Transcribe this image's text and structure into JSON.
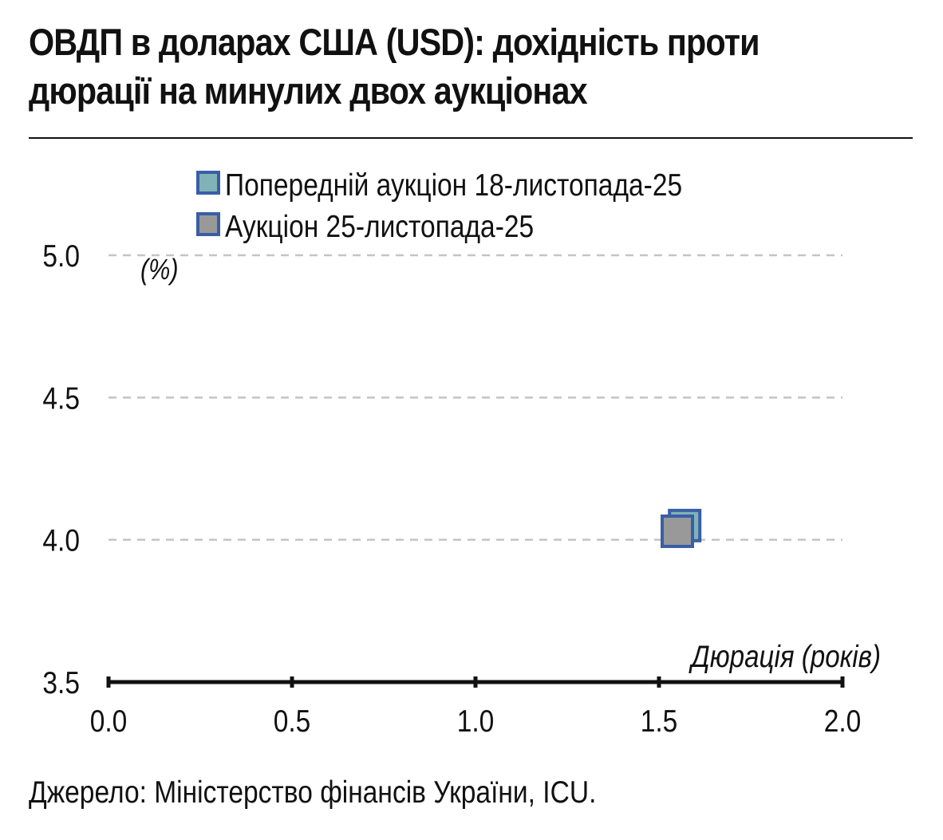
{
  "title": "ОВДП в доларах США (USD): дохідність проти дюрації на минулих двох аукціонах",
  "source": "Джерело: Міністерство фінансів України, ICU.",
  "chart_data": {
    "type": "scatter",
    "title": "ОВДП в доларах США (USD): дохідність проти дюрації на минулих двох аукціонах",
    "xlabel": "Дюрація (років)",
    "ylabel": "(%)",
    "xlim": [
      0.0,
      2.0
    ],
    "ylim": [
      3.5,
      5.0
    ],
    "xticks": [
      "0.0",
      "0.5",
      "1.0",
      "1.5",
      "2.0"
    ],
    "yticks": [
      "3.5",
      "4.0",
      "4.5",
      "5.0"
    ],
    "grid": true,
    "legend_position": "top-left",
    "series": [
      {
        "name": "Попередній аукціон 18-листопада-25",
        "color": "#7fb3b6",
        "border": "#3a5ea6",
        "points": [
          {
            "x": 1.57,
            "y": 4.05
          }
        ]
      },
      {
        "name": "Аукціон 25-листопада-25",
        "color": "#999999",
        "border": "#3a5ea6",
        "points": [
          {
            "x": 1.55,
            "y": 4.03
          }
        ]
      }
    ]
  }
}
